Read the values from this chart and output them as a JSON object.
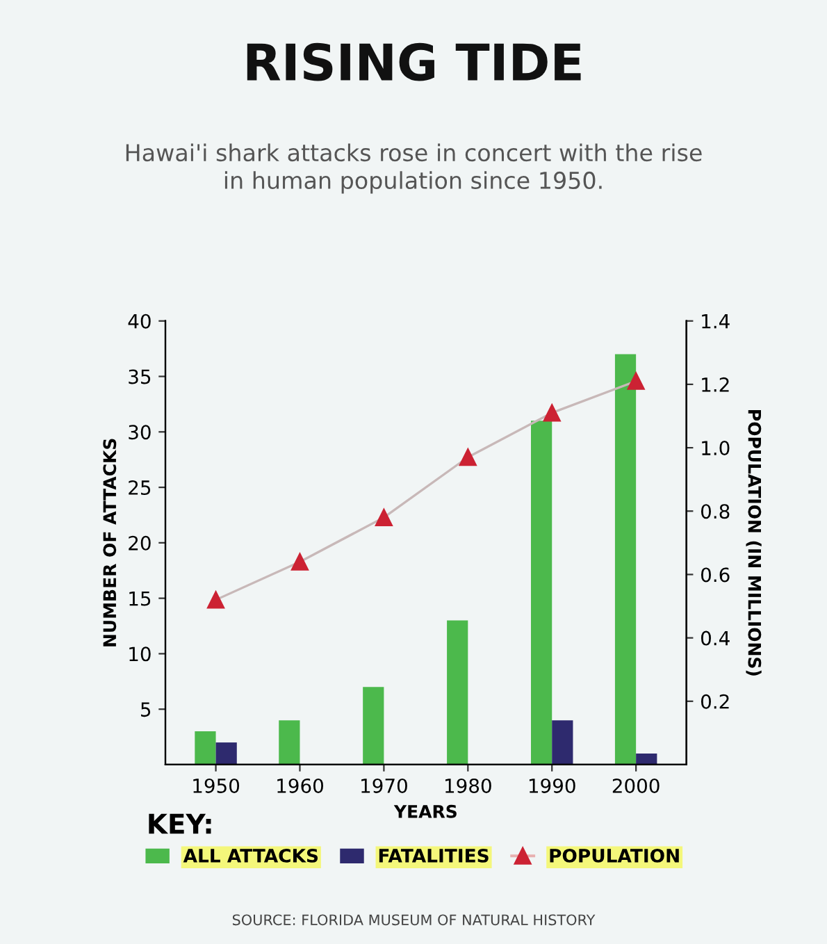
{
  "chart_data": {
    "type": "bar",
    "title": "RISING TIDE",
    "subtitle": "Hawai'i shark attacks rose in concert with the rise\nin human population since 1950.",
    "xlabel": "YEARS",
    "ylabel": "NUMBER OF ATTACKS",
    "y2label": "POPULATION (IN MILLIONS)",
    "legend_title": "KEY:",
    "legend": "bottom",
    "categories": [
      "1950",
      "1960",
      "1970",
      "1980",
      "1990",
      "2000"
    ],
    "series": [
      {
        "name": "ALL ATTACKS",
        "color": "#4cb94c",
        "values": [
          3,
          4,
          7,
          13,
          31,
          37
        ]
      },
      {
        "name": "FATALITIES",
        "color": "#2e2a6e",
        "values": [
          2,
          null,
          null,
          null,
          4,
          1
        ]
      },
      {
        "name": "POPULATION",
        "type": "line",
        "axis": "y2",
        "color": "#cc2233",
        "marker": "triangle",
        "values": [
          0.52,
          0.64,
          0.78,
          0.97,
          1.11,
          1.21
        ]
      }
    ],
    "ylim": [
      0,
      40
    ],
    "yticks": [
      5,
      10,
      15,
      20,
      25,
      30,
      35,
      40
    ],
    "y2lim": [
      0,
      1.4
    ],
    "y2ticks": [
      0.2,
      0.4,
      0.6,
      0.8,
      {
        "value": 1.0,
        "label": "1.0"
      },
      1.2,
      1.4
    ],
    "grid": false,
    "annotations": [
      "SOURCE: FLORIDA MUSEUM OF NATURAL HISTORY"
    ]
  }
}
